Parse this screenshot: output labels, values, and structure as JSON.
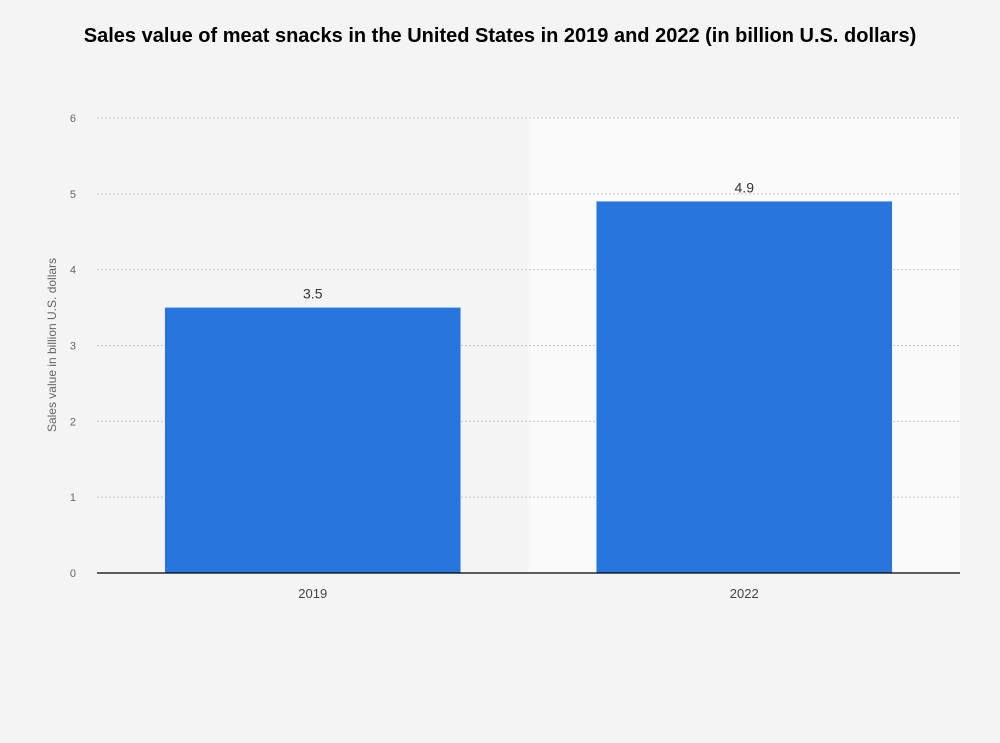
{
  "chart_data": {
    "type": "bar",
    "title": "Sales value of meat snacks in the United States in 2019 and 2022 (in billion U.S. dollars)",
    "xlabel": "",
    "ylabel": "Sales value in billion U.S. dollars",
    "categories": [
      "2019",
      "2022"
    ],
    "values": [
      3.5,
      4.9
    ],
    "data_labels": [
      "3.5",
      "4.9"
    ],
    "ylim": [
      0,
      6
    ],
    "yticks": [
      0,
      1,
      2,
      3,
      4,
      5,
      6
    ],
    "grid": true,
    "highlighted_category": "2022",
    "colors": {
      "bar": "#2876dd",
      "background": "#f4f4f4",
      "highlight_band": "#fafafa",
      "gridline": "#c8c8c8",
      "axis": "#000000"
    }
  }
}
